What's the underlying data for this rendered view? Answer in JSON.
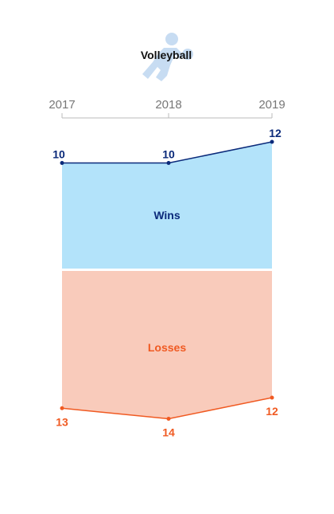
{
  "chart_data": {
    "type": "area",
    "title": "Volleyball",
    "title_icon": "volleyball-player-icon",
    "categories": [
      "2017",
      "2018",
      "2019"
    ],
    "series": [
      {
        "name": "Wins",
        "values": [
          10,
          10,
          12
        ],
        "color": "#0b2a7a",
        "fill": "#b3e3fa"
      },
      {
        "name": "Losses",
        "values": [
          13,
          14,
          12
        ],
        "color": "#f05a22",
        "fill": "#f9cbbb"
      }
    ],
    "ylim": [
      0,
      14
    ],
    "grid": false,
    "legend": "inline"
  }
}
